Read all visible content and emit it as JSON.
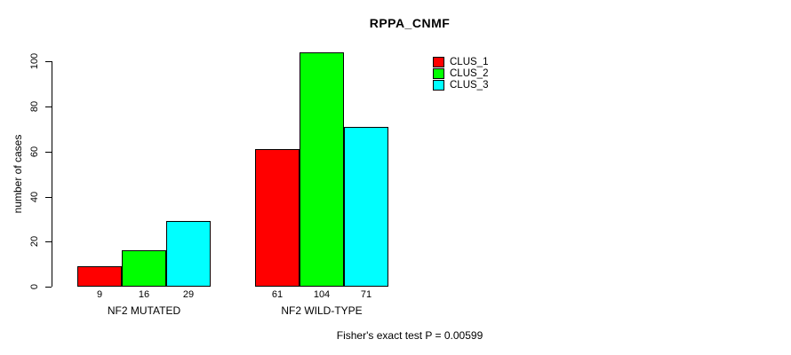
{
  "title": "RPPA_CNMF",
  "chart_data": {
    "type": "bar",
    "title": "RPPA_CNMF",
    "xlabel": "",
    "ylabel": "number of cases",
    "categories": [
      "NF2 MUTATED",
      "NF2 WILD-TYPE"
    ],
    "series": [
      {
        "name": "CLUS_1",
        "color": "#ff0000",
        "values": [
          9,
          61
        ]
      },
      {
        "name": "CLUS_2",
        "color": "#00ff00",
        "values": [
          16,
          104
        ]
      },
      {
        "name": "CLUS_3",
        "color": "#00ffff",
        "values": [
          29,
          71
        ]
      }
    ],
    "bar_value_labels": [
      [
        9,
        16,
        29
      ],
      [
        61,
        104,
        71
      ]
    ],
    "yticks": [
      0,
      20,
      40,
      60,
      80,
      100
    ],
    "ylim": [
      0,
      104
    ],
    "grid": false,
    "legend_position": "top-right",
    "legend_entries": [
      "CLUS_1",
      "CLUS_2",
      "CLUS_3"
    ],
    "annotation": "Fisher's exact test P = 0.00599"
  },
  "colors": {
    "bar_border": "#000000",
    "axis": "#000000",
    "background": "#ffffff",
    "clus_1": "#ff0000",
    "clus_2": "#00ff00",
    "clus_3": "#00ffff"
  }
}
